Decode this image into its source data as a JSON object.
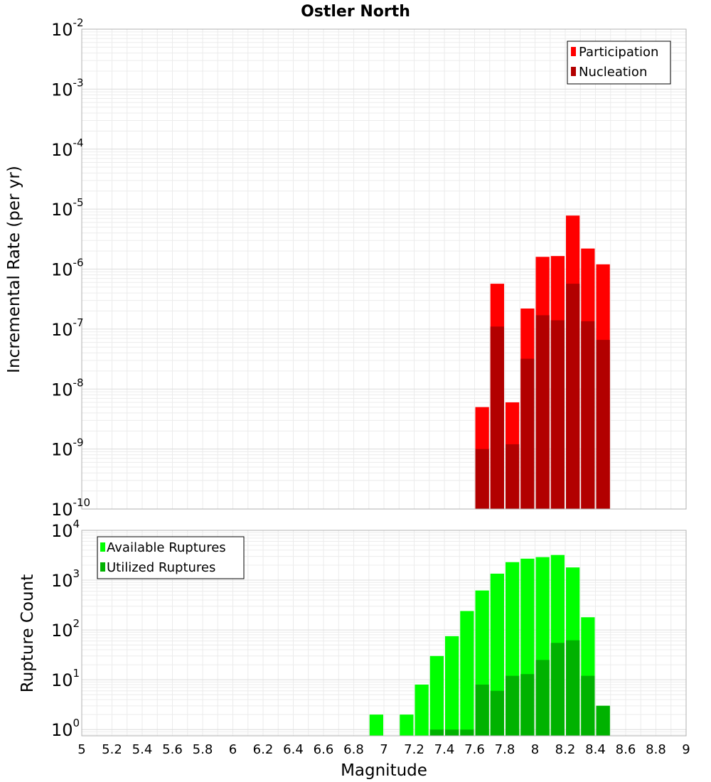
{
  "chart_data": [
    {
      "type": "bar",
      "title": "Ostler North",
      "ylabel": "Incremental Rate (per yr)",
      "xlabel": "",
      "x_range": [
        5,
        9
      ],
      "yscale": "log",
      "ylim": [
        1e-10,
        0.01
      ],
      "y_ticks": [
        {
          "base": "10",
          "exp": "-10"
        },
        {
          "base": "10",
          "exp": "-9"
        },
        {
          "base": "10",
          "exp": "-8"
        },
        {
          "base": "10",
          "exp": "-7"
        },
        {
          "base": "10",
          "exp": "-6"
        },
        {
          "base": "10",
          "exp": "-5"
        },
        {
          "base": "10",
          "exp": "-4"
        },
        {
          "base": "10",
          "exp": "-3"
        },
        {
          "base": "10",
          "exp": "-2"
        }
      ],
      "grid": true,
      "legend_position": "top-right",
      "bin_width": 0.1,
      "series": [
        {
          "name": "Participation",
          "color": "#ff0000",
          "x": [
            7.65,
            7.75,
            7.85,
            7.95,
            8.05,
            8.15,
            8.25,
            8.35,
            8.45
          ],
          "values": [
            5e-09,
            5.7e-07,
            6e-09,
            2.2e-07,
            1.6e-06,
            1.65e-06,
            7.8e-06,
            2.2e-06,
            1.2e-06
          ]
        },
        {
          "name": "Nucleation",
          "color": "#b20000",
          "x": [
            7.65,
            7.75,
            7.85,
            7.95,
            8.05,
            8.15,
            8.25,
            8.35,
            8.45
          ],
          "values": [
            1e-09,
            1.1e-07,
            1.2e-09,
            3.2e-08,
            1.7e-07,
            1.4e-07,
            5.7e-07,
            1.35e-07,
            6.6e-08
          ]
        }
      ]
    },
    {
      "type": "bar",
      "title": "",
      "ylabel": "Rupture Count",
      "xlabel": "Magnitude",
      "x_range": [
        5,
        9
      ],
      "x_ticks": [
        "5",
        "5.2",
        "5.4",
        "5.6",
        "5.8",
        "6",
        "6.2",
        "6.4",
        "6.6",
        "6.8",
        "7",
        "7.2",
        "7.4",
        "7.6",
        "7.8",
        "8",
        "8.2",
        "8.4",
        "8.6",
        "8.8",
        "9"
      ],
      "yscale": "log",
      "ylim": [
        0.75,
        10000.0
      ],
      "y_ticks": [
        {
          "base": "10",
          "exp": "0"
        },
        {
          "base": "10",
          "exp": "1"
        },
        {
          "base": "10",
          "exp": "2"
        },
        {
          "base": "10",
          "exp": "3"
        },
        {
          "base": "10",
          "exp": "4"
        }
      ],
      "grid": true,
      "legend_position": "top-left",
      "bin_width": 0.1,
      "series": [
        {
          "name": "Available Ruptures",
          "color": "#00ff00",
          "x": [
            6.95,
            7.15,
            7.25,
            7.35,
            7.45,
            7.55,
            7.65,
            7.75,
            7.85,
            7.95,
            8.05,
            8.15,
            8.25,
            8.35,
            8.45
          ],
          "values": [
            2,
            2,
            8,
            30,
            75,
            240,
            620,
            1350,
            2300,
            2700,
            2900,
            3200,
            1800,
            180,
            3
          ]
        },
        {
          "name": "Utilized Ruptures",
          "color": "#00b200",
          "x": [
            7.35,
            7.45,
            7.55,
            7.65,
            7.75,
            7.85,
            7.95,
            8.05,
            8.15,
            8.25,
            8.35,
            8.45
          ],
          "values": [
            1,
            1,
            1,
            8,
            6,
            12,
            13,
            25,
            55,
            62,
            12,
            3
          ]
        }
      ]
    }
  ]
}
